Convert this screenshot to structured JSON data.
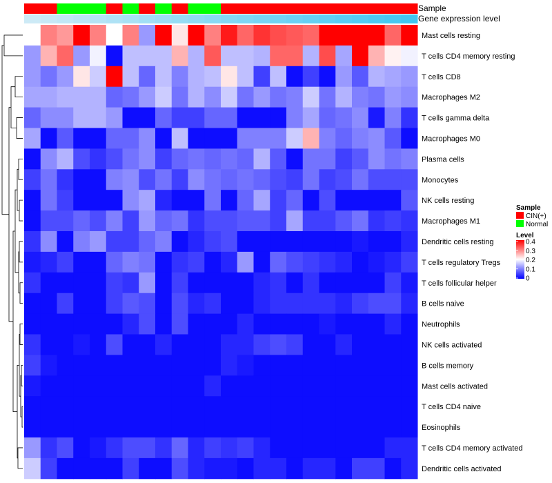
{
  "chart_data": {
    "type": "heatmap",
    "title": "",
    "annotation_rows": [
      {
        "label": "Sample"
      },
      {
        "label": "Gene expression level"
      }
    ],
    "sample_groups": [
      "CIN(+)",
      "CIN(+)",
      "Normal",
      "Normal",
      "Normal",
      "CIN(+)",
      "Normal",
      "CIN(+)",
      "Normal",
      "CIN(+)",
      "Normal",
      "Normal",
      "CIN(+)",
      "CIN(+)",
      "CIN(+)",
      "CIN(+)",
      "CIN(+)",
      "CIN(+)",
      "CIN(+)",
      "CIN(+)",
      "CIN(+)",
      "CIN(+)",
      "CIN(+)",
      "CIN(+)"
    ],
    "expression_level": [
      0.05,
      0.08,
      0.11,
      0.14,
      0.17,
      0.2,
      0.23,
      0.26,
      0.29,
      0.32,
      0.35,
      0.38,
      0.41,
      0.44,
      0.47,
      0.5,
      0.53,
      0.56,
      0.59,
      0.62,
      0.65,
      0.68,
      0.71,
      0.74
    ],
    "rows": [
      "Mast cells resting",
      "T cells CD4 memory resting",
      "T cells CD8",
      "Macrophages M2",
      "T cells gamma delta",
      "Macrophages M0",
      "Plasma cells",
      "Monocytes",
      "NK cells resting",
      "Macrophages M1",
      "Dendritic cells resting",
      "T cells regulatory  Tregs",
      "T cells follicular helper",
      "B cells naive",
      "Neutrophils",
      "NK cells activated",
      "B cells memory",
      "Mast cells activated",
      "T cells CD4 naive",
      "Eosinophils",
      "T cells CD4 memory activated",
      "Dendritic cells activated"
    ],
    "values": [
      [
        0.2,
        0.3,
        0.28,
        0.4,
        0.3,
        0.2,
        0.3,
        0.12,
        0.4,
        0.22,
        0.4,
        0.3,
        0.38,
        0.32,
        0.36,
        0.34,
        0.33,
        0.32,
        0.4,
        0.4,
        0.4,
        0.4,
        0.32,
        0.4
      ],
      [
        0.12,
        0.26,
        0.32,
        0.12,
        0.19,
        0.01,
        0.15,
        0.15,
        0.15,
        0.26,
        0.14,
        0.33,
        0.15,
        0.15,
        0.14,
        0.32,
        0.32,
        0.14,
        0.34,
        0.13,
        0.4,
        0.26,
        0.21,
        0.19
      ],
      [
        0.12,
        0.09,
        0.12,
        0.22,
        0.16,
        0.4,
        0.15,
        0.08,
        0.15,
        0.1,
        0.14,
        0.15,
        0.22,
        0.15,
        0.05,
        0.15,
        0.01,
        0.05,
        0.01,
        0.12,
        0.07,
        0.14,
        0.13,
        0.12
      ],
      [
        0.13,
        0.13,
        0.14,
        0.14,
        0.14,
        0.08,
        0.09,
        0.12,
        0.16,
        0.09,
        0.14,
        0.11,
        0.16,
        0.09,
        0.12,
        0.09,
        0.1,
        0.16,
        0.09,
        0.14,
        0.1,
        0.09,
        0.12,
        0.11
      ],
      [
        0.08,
        0.11,
        0.11,
        0.14,
        0.14,
        0.12,
        0.01,
        0.01,
        0.08,
        0.05,
        0.05,
        0.08,
        0.08,
        0.01,
        0.01,
        0.01,
        0.1,
        0.13,
        0.08,
        0.09,
        0.11,
        0.02,
        0.1,
        0.04
      ],
      [
        0.13,
        0.01,
        0.07,
        0.01,
        0.01,
        0.08,
        0.08,
        0.11,
        0.01,
        0.15,
        0.01,
        0.01,
        0.01,
        0.1,
        0.1,
        0.1,
        0.16,
        0.26,
        0.1,
        0.08,
        0.1,
        0.11,
        0.07,
        0.01
      ],
      [
        0.01,
        0.11,
        0.14,
        0.06,
        0.04,
        0.06,
        0.09,
        0.11,
        0.05,
        0.08,
        0.09,
        0.08,
        0.09,
        0.08,
        0.14,
        0.07,
        0.01,
        0.09,
        0.09,
        0.05,
        0.07,
        0.11,
        0.09,
        0.1
      ],
      [
        0.05,
        0.09,
        0.04,
        0.01,
        0.01,
        0.1,
        0.11,
        0.06,
        0.09,
        0.05,
        0.11,
        0.09,
        0.08,
        0.09,
        0.08,
        0.06,
        0.05,
        0.09,
        0.05,
        0.06,
        0.09,
        0.06,
        0.06,
        0.06
      ],
      [
        0.01,
        0.09,
        0.05,
        0.01,
        0.01,
        0.01,
        0.11,
        0.13,
        0.03,
        0.01,
        0.01,
        0.09,
        0.01,
        0.08,
        0.13,
        0.05,
        0.08,
        0.01,
        0.06,
        0.01,
        0.01,
        0.01,
        0.01,
        0.07
      ],
      [
        0.01,
        0.06,
        0.06,
        0.08,
        0.06,
        0.1,
        0.05,
        0.12,
        0.08,
        0.09,
        0.04,
        0.06,
        0.06,
        0.07,
        0.07,
        0.05,
        0.13,
        0.05,
        0.05,
        0.07,
        0.09,
        0.04,
        0.05,
        0.04
      ],
      [
        0.04,
        0.11,
        0.01,
        0.1,
        0.12,
        0.05,
        0.05,
        0.08,
        0.1,
        0.01,
        0.03,
        0.05,
        0.06,
        0.01,
        0.01,
        0.01,
        0.01,
        0.01,
        0.01,
        0.01,
        0.02,
        0.01,
        0.01,
        0.03
      ],
      [
        0.02,
        0.03,
        0.05,
        0.01,
        0.01,
        0.08,
        0.1,
        0.09,
        0.01,
        0.04,
        0.05,
        0.01,
        0.03,
        0.12,
        0.01,
        0.08,
        0.06,
        0.05,
        0.04,
        0.03,
        0.01,
        0.02,
        0.03,
        0.05
      ],
      [
        0.04,
        0.01,
        0.01,
        0.01,
        0.01,
        0.05,
        0.04,
        0.12,
        0.01,
        0.05,
        0.01,
        0.01,
        0.01,
        0.01,
        0.03,
        0.04,
        0.01,
        0.04,
        0.01,
        0.01,
        0.01,
        0.01,
        0.05,
        0.02
      ],
      [
        0.01,
        0.01,
        0.05,
        0.01,
        0.01,
        0.05,
        0.07,
        0.06,
        0.01,
        0.06,
        0.03,
        0.04,
        0.01,
        0.01,
        0.03,
        0.04,
        0.04,
        0.04,
        0.04,
        0.03,
        0.05,
        0.06,
        0.06,
        0.03
      ],
      [
        0.01,
        0.01,
        0.01,
        0.01,
        0.01,
        0.01,
        0.03,
        0.06,
        0.01,
        0.06,
        0.01,
        0.01,
        0.01,
        0.03,
        0.01,
        0.01,
        0.01,
        0.01,
        0.02,
        0.01,
        0.01,
        0.01,
        0.03,
        0.01
      ],
      [
        0.04,
        0.01,
        0.01,
        0.02,
        0.01,
        0.06,
        0.01,
        0.01,
        0.03,
        0.01,
        0.01,
        0.01,
        0.03,
        0.03,
        0.05,
        0.06,
        0.05,
        0.01,
        0.01,
        0.03,
        0.01,
        0.01,
        0.01,
        0.01
      ],
      [
        0.05,
        0.02,
        0.01,
        0.01,
        0.01,
        0.01,
        0.01,
        0.01,
        0.01,
        0.01,
        0.01,
        0.01,
        0.03,
        0.02,
        0.01,
        0.01,
        0.01,
        0.01,
        0.01,
        0.01,
        0.01,
        0.01,
        0.01,
        0.01
      ],
      [
        0.02,
        0.01,
        0.01,
        0.01,
        0.01,
        0.01,
        0.01,
        0.01,
        0.01,
        0.01,
        0.01,
        0.03,
        0.01,
        0.01,
        0.01,
        0.01,
        0.01,
        0.01,
        0.01,
        0.01,
        0.01,
        0.01,
        0.01,
        0.01
      ],
      [
        0.01,
        0.01,
        0.01,
        0.01,
        0.01,
        0.01,
        0.01,
        0.01,
        0.01,
        0.01,
        0.01,
        0.01,
        0.01,
        0.01,
        0.01,
        0.01,
        0.01,
        0.01,
        0.01,
        0.01,
        0.01,
        0.01,
        0.01,
        0.01
      ],
      [
        0.01,
        0.01,
        0.01,
        0.01,
        0.01,
        0.01,
        0.01,
        0.01,
        0.01,
        0.01,
        0.01,
        0.01,
        0.01,
        0.01,
        0.01,
        0.01,
        0.01,
        0.01,
        0.01,
        0.01,
        0.01,
        0.01,
        0.01,
        0.01
      ],
      [
        0.12,
        0.04,
        0.06,
        0.01,
        0.02,
        0.04,
        0.06,
        0.06,
        0.04,
        0.08,
        0.03,
        0.05,
        0.04,
        0.05,
        0.03,
        0.01,
        0.01,
        0.01,
        0.01,
        0.01,
        0.01,
        0.01,
        0.03,
        0.03
      ],
      [
        0.16,
        0.05,
        0.01,
        0.01,
        0.01,
        0.01,
        0.05,
        0.01,
        0.01,
        0.06,
        0.03,
        0.02,
        0.02,
        0.01,
        0.03,
        0.03,
        0.01,
        0.03,
        0.03,
        0.01,
        0.05,
        0.05,
        0.01,
        0.03
      ]
    ],
    "legend": {
      "sample_title": "Sample",
      "sample_entries": [
        {
          "label": "CIN(+)",
          "color": "#ff0000"
        },
        {
          "label": "Normal",
          "color": "#00ff00"
        }
      ],
      "level_title": "Level",
      "level_ticks": [
        0.4,
        0.3,
        0.2,
        0.1,
        0
      ],
      "level_tick_labels": [
        "0.4",
        "0.3",
        "0.2",
        "0.1",
        "0"
      ],
      "level_range": [
        0,
        0.4
      ]
    },
    "colors": {
      "low": "#0000ff",
      "mid": "#ffffff",
      "high": "#ff0000",
      "annotation_light": "#cdeaf6",
      "annotation_dark": "#41c6f2"
    }
  }
}
